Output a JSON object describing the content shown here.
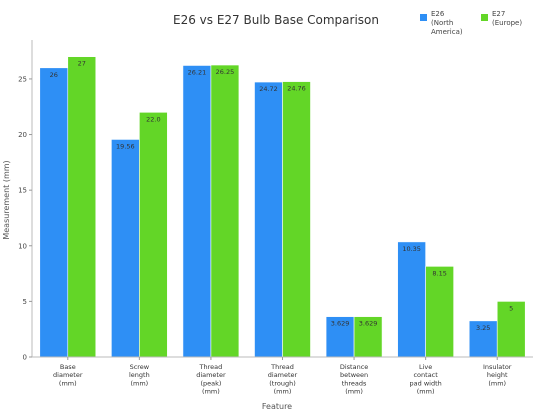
{
  "chart_data": {
    "type": "bar",
    "title": "E26 vs E27 Bulb Base Comparison",
    "xlabel": "Feature",
    "ylabel": "Measurement (mm)",
    "ylim": [
      0,
      28.5
    ],
    "yticks": [
      0,
      5,
      10,
      15,
      20,
      25
    ],
    "grid": false,
    "legend_position": "top-right",
    "categories": [
      "Base\ndiameter\n(mm)",
      "Screw\nlength\n(mm)",
      "Thread\ndiameter\n(peak)\n(mm)",
      "Thread\ndiameter\n(trough)\n(mm)",
      "Distance\nbetween\nthreads\n(mm)",
      "Live\ncontact\npad width\n(mm)",
      "Insulator\nheight\n(mm)"
    ],
    "series": [
      {
        "name": "E26\n(North\nAmerica)",
        "color": "#2e8ff5",
        "values": [
          26,
          19.56,
          26.21,
          24.72,
          3.629,
          10.35,
          3.25
        ],
        "labels": [
          "26",
          "19.56",
          "26.21",
          "24.72",
          "3.629",
          "10.35",
          "3.25"
        ]
      },
      {
        "name": "E27\n(Europe)",
        "color": "#63d627",
        "values": [
          27,
          22.0,
          26.25,
          24.76,
          3.629,
          8.15,
          5
        ],
        "labels": [
          "27",
          "22.0",
          "26.25",
          "24.76",
          "3.629",
          "8.15",
          "5"
        ]
      }
    ]
  }
}
